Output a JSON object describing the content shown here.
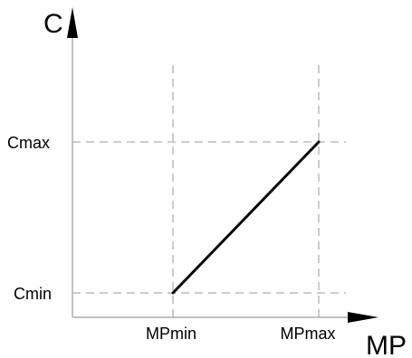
{
  "chart_data": {
    "type": "line",
    "title": "",
    "xlabel": "MP",
    "ylabel": "C",
    "x_ticks": [
      "MPmin",
      "MPmax"
    ],
    "y_ticks": [
      "Cmin",
      "Cmax"
    ],
    "series": [
      {
        "points": [
          {
            "x": "MPmin",
            "y": "Cmin"
          },
          {
            "x": "MPmax",
            "y": "Cmax"
          }
        ]
      }
    ],
    "guides": "dashed",
    "grid": false,
    "legend": "none",
    "colors": {
      "line": "#000000",
      "axes": "#9a9a9a",
      "guides": "#9a9a9a",
      "arrows": "#000000"
    }
  }
}
